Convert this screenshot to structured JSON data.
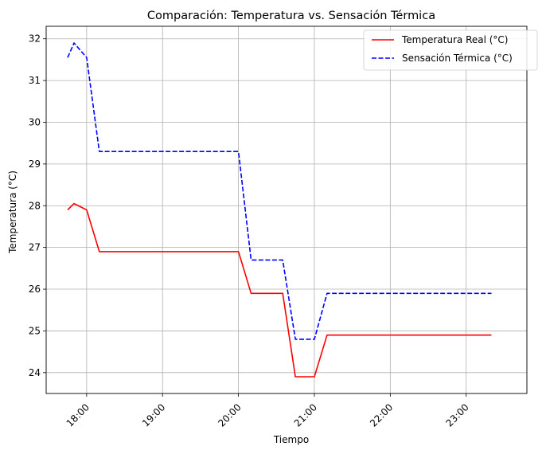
{
  "chart_data": {
    "type": "line",
    "title": "Comparación: Temperatura vs. Sensación Térmica",
    "xlabel": "Tiempo",
    "ylabel": "Temperatura (°C)",
    "ylim": [
      23.5,
      32.3
    ],
    "xlim": [
      "17:28",
      "23:48"
    ],
    "yticks": [
      "24",
      "25",
      "26",
      "27",
      "28",
      "29",
      "30",
      "31",
      "32"
    ],
    "xticks": [
      "18:00",
      "19:00",
      "20:00",
      "21:00",
      "22:00",
      "23:00"
    ],
    "grid": true,
    "legend_position": "top-right",
    "series": [
      {
        "name": "Temperatura Real (°C)",
        "color": "#ff0000",
        "style": "solid",
        "x": [
          "17:45",
          "17:50",
          "18:00",
          "18:10",
          "18:20",
          "18:30",
          "18:40",
          "18:50",
          "19:00",
          "19:10",
          "19:20",
          "19:30",
          "19:40",
          "19:50",
          "20:00",
          "20:10",
          "20:20",
          "20:30",
          "20:35",
          "20:45",
          "20:55",
          "21:00",
          "21:10",
          "21:20",
          "21:30",
          "21:40",
          "21:50",
          "22:00",
          "22:10",
          "22:20",
          "22:30",
          "22:40",
          "22:50",
          "23:00",
          "23:10",
          "23:20"
        ],
        "values": [
          27.9,
          28.05,
          27.9,
          26.9,
          26.9,
          26.9,
          26.9,
          26.9,
          26.9,
          26.9,
          26.9,
          26.9,
          26.9,
          26.9,
          26.9,
          25.9,
          25.9,
          25.9,
          25.9,
          23.9,
          23.9,
          23.9,
          24.9,
          24.9,
          24.9,
          24.9,
          24.9,
          24.9,
          24.9,
          24.9,
          24.9,
          24.9,
          24.9,
          24.9,
          24.9,
          24.9
        ]
      },
      {
        "name": "Sensación Térmica (°C)",
        "color": "#0000ff",
        "style": "dashed",
        "x": [
          "17:45",
          "17:50",
          "18:00",
          "18:10",
          "18:20",
          "18:30",
          "18:40",
          "18:50",
          "19:00",
          "19:10",
          "19:20",
          "19:30",
          "19:40",
          "19:50",
          "20:00",
          "20:10",
          "20:20",
          "20:30",
          "20:35",
          "20:45",
          "20:55",
          "21:00",
          "21:10",
          "21:20",
          "21:30",
          "21:40",
          "21:50",
          "22:00",
          "22:10",
          "22:20",
          "22:30",
          "22:40",
          "22:50",
          "23:00",
          "23:10",
          "23:20"
        ],
        "values": [
          31.55,
          31.9,
          31.55,
          29.3,
          29.3,
          29.3,
          29.3,
          29.3,
          29.3,
          29.3,
          29.3,
          29.3,
          29.3,
          29.3,
          29.3,
          26.7,
          26.7,
          26.7,
          26.7,
          24.8,
          24.8,
          24.8,
          25.9,
          25.9,
          25.9,
          25.9,
          25.9,
          25.9,
          25.9,
          25.9,
          25.9,
          25.9,
          25.9,
          25.9,
          25.9,
          25.9
        ]
      }
    ]
  }
}
